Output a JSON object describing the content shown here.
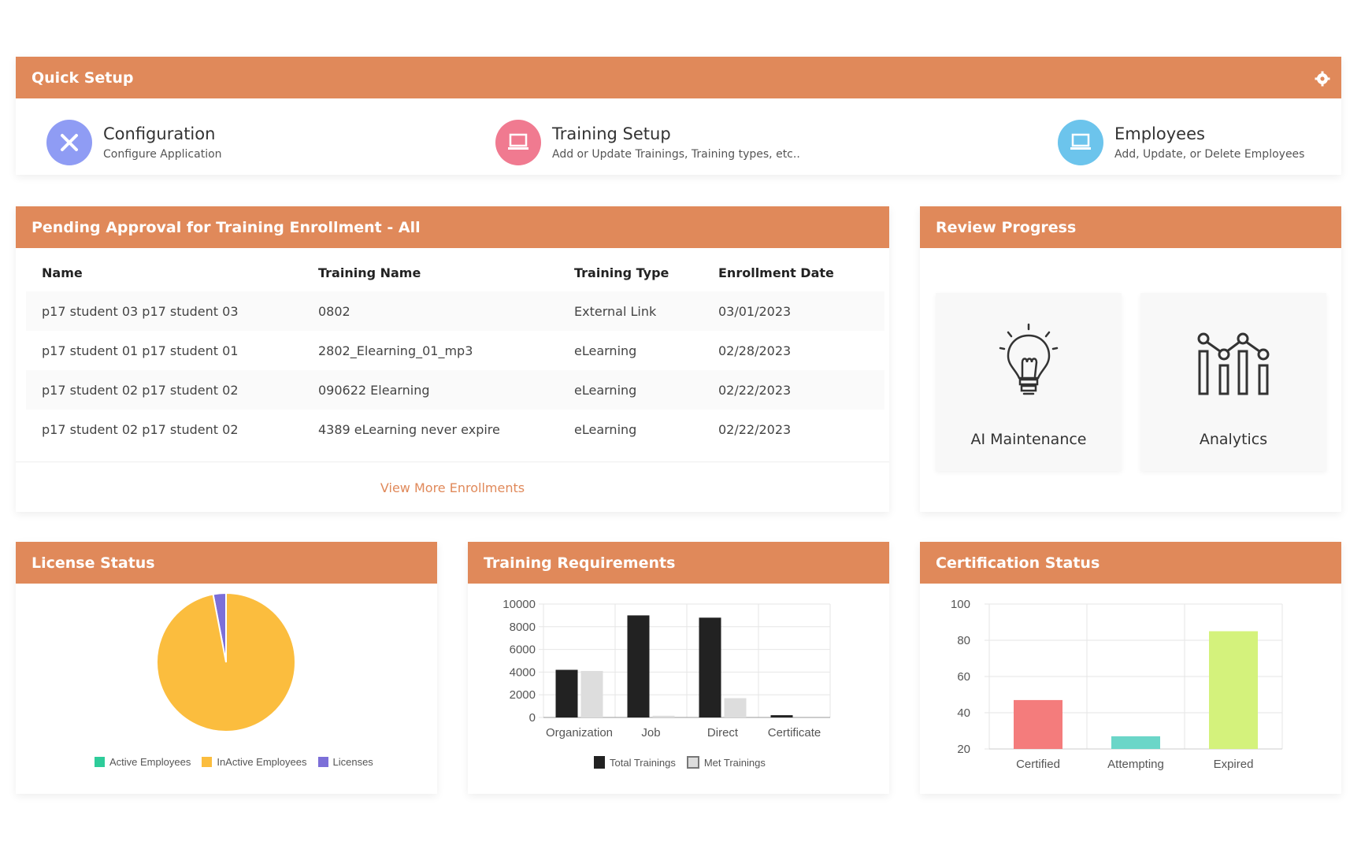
{
  "quick_setup": {
    "title": "Quick Setup",
    "items": [
      {
        "title": "Configuration",
        "subtitle": "Configure Application"
      },
      {
        "title": "Training Setup",
        "subtitle": "Add or Update Trainings, Training types, etc.."
      },
      {
        "title": "Employees",
        "subtitle": "Add, Update, or Delete Employees"
      }
    ]
  },
  "pending": {
    "title": "Pending Approval for Training Enrollment - All",
    "columns": [
      "Name",
      "Training Name",
      "Training Type",
      "Enrollment Date"
    ],
    "rows": [
      [
        "p17 student 03 p17 student 03",
        "0802",
        "External Link",
        "03/01/2023"
      ],
      [
        "p17 student 01 p17 student 01",
        "2802_Elearning_01_mp3",
        "eLearning",
        "02/28/2023"
      ],
      [
        "p17 student 02 p17 student 02",
        "090622 Elearning",
        "eLearning",
        "02/22/2023"
      ],
      [
        "p17 student 02 p17 student 02",
        "4389 eLearning never expire",
        "eLearning",
        "02/22/2023"
      ]
    ],
    "view_more": "View More Enrollments"
  },
  "review": {
    "title": "Review Progress",
    "tiles": [
      "AI Maintenance",
      "Analytics"
    ]
  },
  "license": {
    "title": "License Status",
    "legend": [
      "Active Employees",
      "InActive Employees",
      "Licenses"
    ]
  },
  "training_req": {
    "title": "Training Requirements",
    "legend": [
      "Total Trainings",
      "Met Trainings"
    ]
  },
  "cert": {
    "title": "Certification Status"
  },
  "colors": {
    "header": "#e0895a",
    "active": "#2ecc9a",
    "inactive": "#fbbd3e",
    "licenses": "#7c6fd8",
    "total": "#222222",
    "met": "#dddddd",
    "certified": "#f47c7c",
    "attempting": "#6bd6c8",
    "expired": "#d4f27c"
  },
  "chart_data": [
    {
      "type": "pie",
      "title": "License Status",
      "categories": [
        "Active Employees",
        "InActive Employees",
        "Licenses"
      ],
      "values": [
        0,
        97,
        3
      ]
    },
    {
      "type": "bar",
      "title": "Training Requirements",
      "categories": [
        "Organization",
        "Job",
        "Direct",
        "Certificate"
      ],
      "series": [
        {
          "name": "Total Trainings",
          "values": [
            4200,
            9000,
            8800,
            200
          ]
        },
        {
          "name": "Met Trainings",
          "values": [
            4100,
            150,
            1700,
            0
          ]
        }
      ],
      "ylim": [
        0,
        10000
      ],
      "yticks": [
        "10000",
        "8000",
        "6000",
        "4000",
        "2000",
        "0"
      ]
    },
    {
      "type": "bar",
      "title": "Certification Status",
      "categories": [
        "Certified",
        "Attempting",
        "Expired"
      ],
      "values": [
        47,
        27,
        85
      ],
      "ylim": [
        20,
        100
      ],
      "yticks": [
        "100",
        "80",
        "60",
        "40",
        "20"
      ]
    }
  ]
}
